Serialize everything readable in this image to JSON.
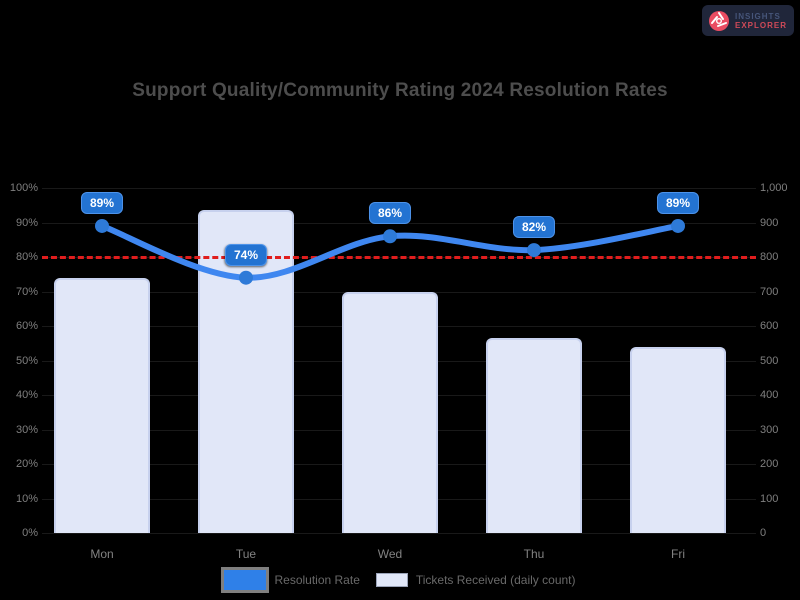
{
  "brand": {
    "line1": "INSIGHTS",
    "line2": "EXPLORER"
  },
  "chart_data": {
    "type": "bar",
    "subtype": "combo-bar-line",
    "title": "Support Quality/Community Rating 2024 Resolution Rates",
    "categories": [
      "Mon",
      "Tue",
      "Wed",
      "Thu",
      "Fri"
    ],
    "series": [
      {
        "name": "Resolution Rate",
        "type": "line",
        "axis": "left",
        "unit": "%",
        "values": [
          89,
          74,
          86,
          82,
          89
        ],
        "color": "#3f87f0"
      },
      {
        "name": "Tickets Received (daily count)",
        "type": "bar",
        "axis": "right",
        "values": [
          740,
          935,
          700,
          565,
          540
        ],
        "color": "#e1e7f8"
      }
    ],
    "point_labels": [
      "89%",
      "74%",
      "86%",
      "82%",
      "89%"
    ],
    "target_line": {
      "value": 80,
      "axis": "left",
      "color": "#e01d1d",
      "style": "dashed"
    },
    "left_axis": {
      "min": 0,
      "max": 100,
      "ticks": [
        "100%",
        "90%",
        "80%",
        "70%",
        "60%",
        "50%",
        "40%",
        "30%",
        "20%",
        "10%",
        "0%"
      ]
    },
    "right_axis": {
      "min": 0,
      "max": 1000,
      "ticks": [
        "1,000",
        "900",
        "800",
        "700",
        "600",
        "500",
        "400",
        "300",
        "200",
        "100",
        "0"
      ]
    },
    "grid": "horizontal",
    "legend_position": "bottom",
    "background": "#000000"
  },
  "legend": {
    "items": [
      {
        "label": "Resolution Rate",
        "color": "#2f80e8",
        "shape": "line-swatch"
      },
      {
        "label": "Tickets Received (daily count)",
        "color": "#e1e7f8",
        "shape": "bar-swatch"
      }
    ]
  },
  "colors": {
    "background": "#000000",
    "title": "#4d4d4d",
    "axis_labels": "#7f7f7f",
    "line": "#3f87f0",
    "point": "#2e7ad8",
    "bubble_bg": "#2373d2",
    "bar_fill": "#e1e7f8",
    "bar_border": "#c7d1ee",
    "target": "#e01d1d",
    "brand_accent": "#ea4c62"
  }
}
